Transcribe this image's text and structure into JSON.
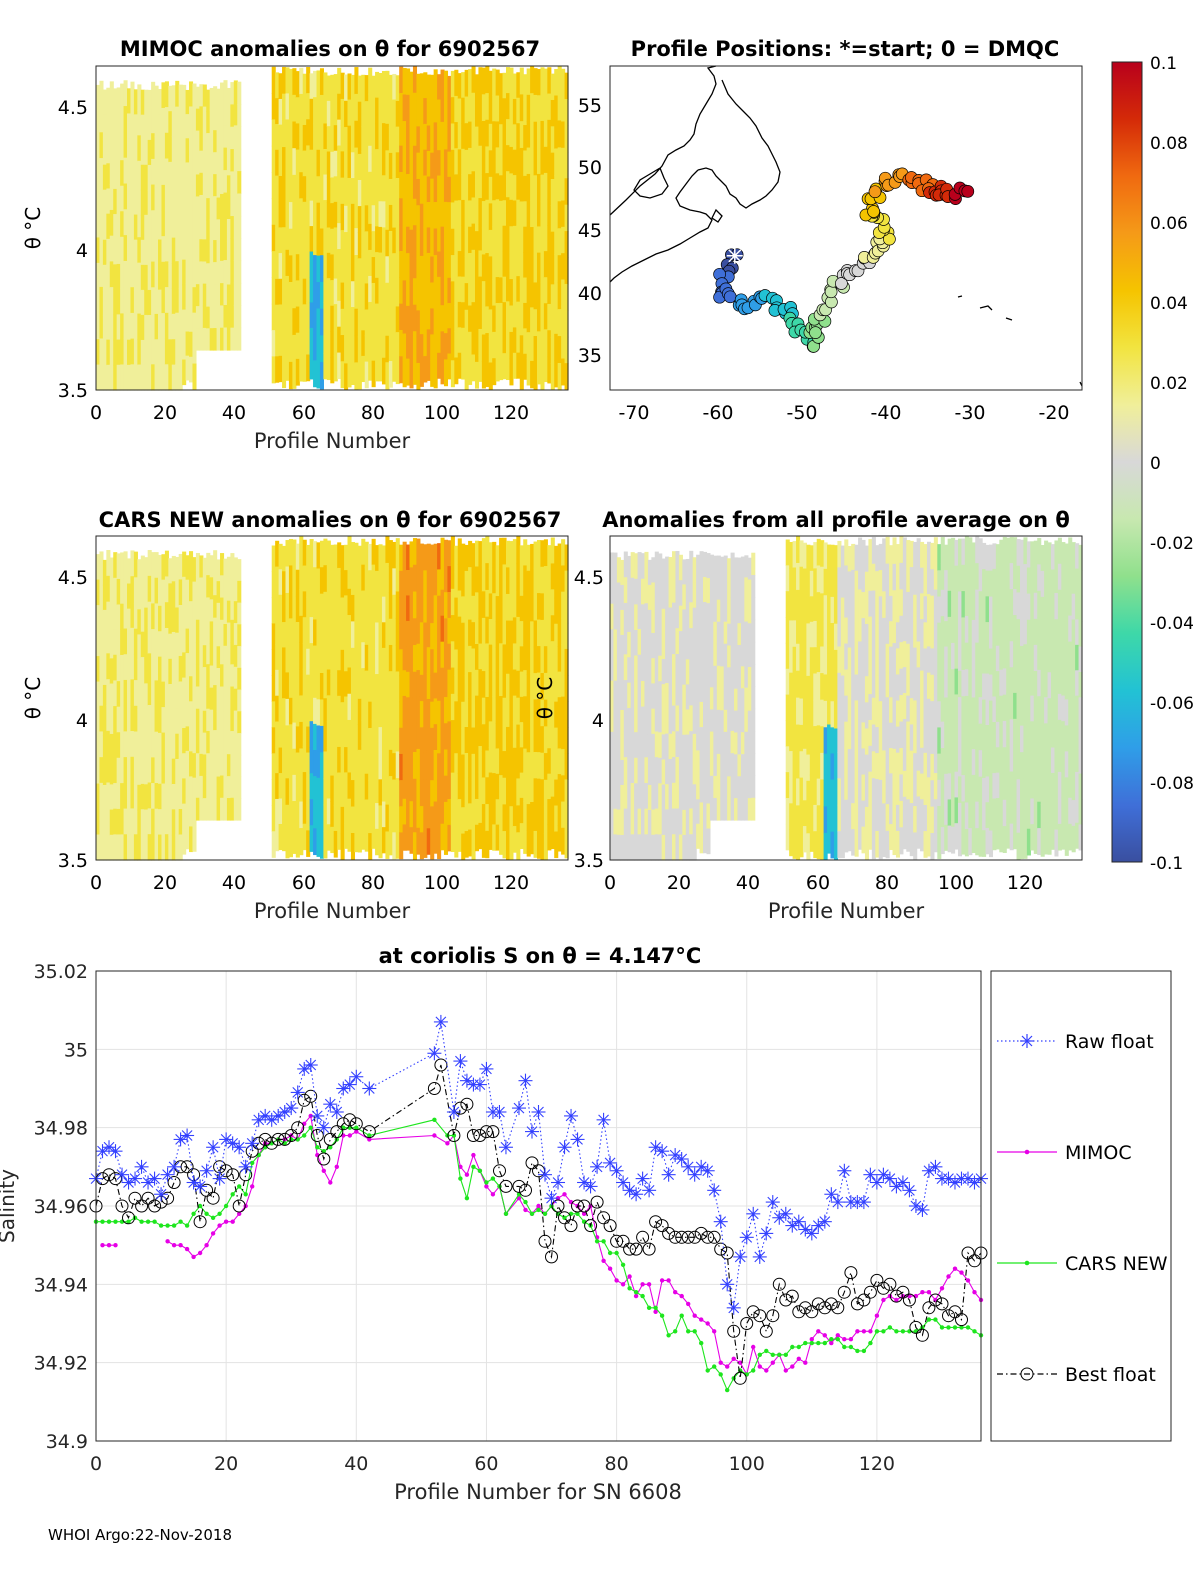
{
  "colors": {
    "raw": "#3340ff",
    "mimoc": "#e600e6",
    "cars": "#1ee61e",
    "best": "#000000",
    "colormap": [
      "#3a4fa0",
      "#3f6fd8",
      "#2f9ee8",
      "#22c2d4",
      "#3ed8a8",
      "#8fe08c",
      "#c8e8b0",
      "#d8d8d8",
      "#f0ef9a",
      "#f2e440",
      "#f5c400",
      "#f59a18",
      "#f06a10",
      "#d42a08",
      "#b8001c"
    ]
  },
  "panels": {
    "mimoc": {
      "title": "MIMOC anomalies on θ  for 6902567",
      "xlabel": "Profile Number",
      "ylabel": "θ °C",
      "xticks": [
        "0",
        "20",
        "40",
        "60",
        "80",
        "100",
        "120"
      ],
      "yticks": [
        "3.5",
        "4",
        "4.5"
      ]
    },
    "positions": {
      "title": "Profile Positions: *=start; 0 = DMQC",
      "xticks": [
        "-70",
        "-60",
        "-50",
        "-40",
        "-30",
        "-20"
      ],
      "yticks": [
        "35",
        "40",
        "45",
        "50",
        "55"
      ]
    },
    "cars": {
      "title": "CARS NEW anomalies on θ for 6902567",
      "xlabel": "Profile Number",
      "ylabel": "θ °C",
      "xticks": [
        "0",
        "20",
        "40",
        "60",
        "80",
        "100",
        "120"
      ],
      "yticks": [
        "3.5",
        "4",
        "4.5"
      ]
    },
    "allavg": {
      "title": "Anomalies from all profile average on θ",
      "xlabel": "Profile Number",
      "ylabel": "θ °C",
      "xticks": [
        "0",
        "20",
        "40",
        "60",
        "80",
        "100",
        "120"
      ],
      "yticks": [
        "3.5",
        "4",
        "4.5"
      ]
    },
    "colorbar": {
      "ticks": [
        "0.1",
        "0.08",
        "0.06",
        "0.04",
        "0.02",
        "0",
        "-0.02",
        "-0.04",
        "-0.06",
        "-0.08",
        "-0.1"
      ]
    }
  },
  "chart_data": {
    "type": "line",
    "title": "at coriolis S on θ = 4.147°C",
    "xlabel": "Profile Number for SN 6608",
    "ylabel": "Salinity",
    "xlim": [
      0,
      136
    ],
    "ylim": [
      34.9,
      35.02
    ],
    "xticks": [
      0,
      20,
      40,
      60,
      80,
      100,
      120
    ],
    "yticks": [
      34.9,
      34.92,
      34.94,
      34.96,
      34.98,
      35,
      35.02
    ],
    "ytick_labels": [
      "34.9",
      "34.92",
      "34.94",
      "34.96",
      "34.98",
      "35",
      "35.02"
    ],
    "grid": true,
    "legend_position": "right-outside",
    "series": [
      {
        "name": "Raw float",
        "style": "dotted-asterisk",
        "x": [
          0,
          1,
          2,
          3,
          4,
          5,
          6,
          7,
          8,
          9,
          10,
          11,
          12,
          13,
          14,
          15,
          16,
          17,
          18,
          19,
          20,
          21,
          22,
          23,
          24,
          25,
          26,
          27,
          28,
          29,
          30,
          31,
          32,
          33,
          34,
          35,
          36,
          37,
          38,
          39,
          40,
          42,
          52,
          53,
          55,
          56,
          57,
          58,
          59,
          60,
          61,
          62,
          63,
          65,
          66,
          67,
          68,
          69,
          70,
          71,
          72,
          73,
          74,
          75,
          76,
          77,
          78,
          79,
          80,
          81,
          82,
          83,
          84,
          85,
          86,
          87,
          88,
          89,
          90,
          91,
          92,
          93,
          94,
          95,
          96,
          97,
          98,
          99,
          100,
          101,
          102,
          103,
          104,
          105,
          106,
          107,
          108,
          109,
          110,
          111,
          112,
          113,
          114,
          115,
          116,
          117,
          118,
          119,
          120,
          121,
          122,
          123,
          124,
          125,
          126,
          127,
          128,
          129,
          130,
          131,
          132,
          133,
          134,
          135,
          136
        ],
        "values": [
          34.967,
          34.974,
          34.975,
          34.974,
          34.968,
          34.966,
          34.967,
          34.97,
          34.966,
          34.967,
          34.963,
          34.968,
          34.97,
          34.977,
          34.978,
          34.966,
          34.965,
          34.969,
          34.975,
          34.967,
          34.977,
          34.976,
          34.975,
          34.97,
          34.976,
          34.982,
          34.983,
          34.982,
          34.983,
          34.984,
          34.985,
          34.989,
          34.995,
          34.996,
          34.983,
          34.98,
          34.986,
          34.984,
          34.99,
          34.991,
          34.993,
          34.99,
          34.999,
          35.007,
          34.984,
          34.997,
          34.992,
          34.991,
          34.991,
          34.995,
          34.984,
          34.984,
          34.975,
          34.985,
          34.992,
          34.979,
          34.984,
          34.968,
          34.962,
          34.966,
          34.975,
          34.983,
          34.977,
          34.966,
          34.965,
          34.97,
          34.982,
          34.971,
          34.969,
          34.966,
          34.964,
          34.963,
          34.967,
          34.964,
          34.975,
          34.974,
          34.968,
          34.973,
          34.972,
          34.97,
          34.968,
          34.97,
          34.969,
          34.964,
          34.956,
          34.94,
          34.934,
          34.947,
          34.952,
          34.958,
          34.947,
          34.953,
          34.961,
          34.957,
          34.958,
          34.955,
          34.956,
          34.954,
          34.953,
          34.955,
          34.956,
          34.963,
          34.961,
          34.969,
          34.961,
          34.961,
          34.961,
          34.968,
          34.966,
          34.968,
          34.967,
          34.965,
          34.966,
          34.964,
          34.96,
          34.959,
          34.969,
          34.97,
          34.967,
          34.967,
          34.966,
          34.967,
          34.967,
          34.966,
          34.967
        ]
      },
      {
        "name": "MIMOC",
        "style": "solid-dot",
        "x": [
          1,
          2,
          3,
          11,
          12,
          13,
          14,
          15,
          16,
          17,
          18,
          19,
          20,
          21,
          22,
          23,
          24,
          25,
          26,
          27,
          28,
          29,
          30,
          31,
          32,
          33,
          34,
          35,
          36,
          37,
          38,
          39,
          40,
          42,
          52,
          54,
          55,
          56,
          57,
          58,
          59,
          60,
          61,
          62,
          63,
          65,
          66,
          67,
          68,
          69,
          70,
          71,
          72,
          73,
          74,
          75,
          76,
          77,
          78,
          79,
          80,
          81,
          82,
          83,
          84,
          85,
          86,
          87,
          88,
          89,
          90,
          91,
          92,
          93,
          94,
          95,
          96,
          97,
          98,
          99,
          100,
          101,
          102,
          103,
          104,
          105,
          106,
          107,
          108,
          109,
          110,
          111,
          112,
          113,
          114,
          115,
          116,
          117,
          118,
          119,
          120,
          121,
          122,
          123,
          124,
          125,
          126,
          127,
          128,
          129,
          130,
          131,
          132,
          133,
          134,
          135,
          136
        ],
        "values": [
          34.95,
          34.95,
          34.95,
          34.951,
          34.95,
          34.95,
          34.949,
          34.947,
          34.948,
          34.95,
          34.953,
          34.955,
          34.956,
          34.956,
          34.958,
          34.96,
          34.965,
          34.973,
          34.976,
          34.976,
          34.977,
          34.977,
          34.978,
          34.977,
          34.981,
          34.983,
          34.973,
          34.969,
          34.966,
          34.97,
          34.978,
          34.978,
          34.979,
          34.977,
          34.978,
          34.976,
          34.978,
          34.97,
          34.968,
          34.973,
          34.969,
          34.965,
          34.963,
          34.965,
          34.958,
          34.962,
          34.959,
          34.958,
          34.96,
          34.958,
          34.96,
          34.962,
          34.963,
          34.961,
          34.96,
          34.958,
          34.96,
          34.952,
          34.946,
          34.944,
          34.941,
          34.94,
          34.942,
          34.937,
          34.94,
          34.94,
          34.933,
          34.941,
          34.941,
          34.938,
          34.937,
          34.935,
          34.932,
          34.931,
          34.93,
          34.928,
          34.92,
          34.919,
          34.921,
          34.92,
          34.917,
          34.924,
          34.919,
          34.918,
          34.92,
          34.922,
          34.918,
          34.919,
          34.921,
          34.92,
          34.926,
          34.928,
          34.927,
          34.925,
          34.927,
          34.926,
          34.926,
          34.928,
          34.928,
          34.928,
          34.932,
          34.936,
          34.937,
          34.936,
          34.937,
          34.937,
          34.937,
          34.938,
          34.938,
          34.936,
          34.939,
          34.942,
          34.944,
          34.943,
          34.941,
          34.938,
          34.936
        ]
      },
      {
        "name": "CARS NEW",
        "style": "solid-dot",
        "x": [
          0,
          1,
          2,
          3,
          4,
          5,
          6,
          7,
          8,
          9,
          10,
          11,
          12,
          13,
          14,
          15,
          16,
          17,
          18,
          19,
          20,
          21,
          22,
          23,
          24,
          25,
          26,
          27,
          28,
          29,
          30,
          31,
          32,
          33,
          34,
          35,
          36,
          37,
          38,
          39,
          40,
          42,
          52,
          54,
          55,
          56,
          57,
          58,
          59,
          60,
          61,
          62,
          63,
          65,
          66,
          67,
          68,
          69,
          70,
          71,
          72,
          73,
          74,
          75,
          76,
          77,
          78,
          79,
          80,
          81,
          82,
          83,
          84,
          85,
          86,
          87,
          88,
          89,
          90,
          91,
          92,
          93,
          94,
          95,
          96,
          97,
          98,
          99,
          100,
          101,
          102,
          103,
          104,
          105,
          106,
          107,
          108,
          109,
          110,
          111,
          112,
          113,
          114,
          115,
          116,
          117,
          118,
          119,
          120,
          121,
          122,
          123,
          124,
          125,
          126,
          127,
          128,
          129,
          130,
          131,
          132,
          133,
          134,
          135,
          136
        ],
        "values": [
          34.956,
          34.956,
          34.956,
          34.956,
          34.956,
          34.956,
          34.957,
          34.956,
          34.956,
          34.956,
          34.955,
          34.955,
          34.955,
          34.956,
          34.955,
          34.958,
          34.96,
          34.958,
          34.957,
          34.958,
          34.96,
          34.963,
          34.965,
          34.963,
          34.971,
          34.973,
          34.975,
          34.976,
          34.977,
          34.976,
          34.977,
          34.977,
          34.978,
          34.98,
          34.975,
          34.974,
          34.975,
          34.977,
          34.98,
          34.98,
          34.98,
          34.978,
          34.982,
          34.978,
          34.978,
          34.967,
          34.962,
          34.97,
          34.969,
          34.966,
          34.967,
          34.965,
          34.958,
          34.963,
          34.961,
          34.958,
          34.959,
          34.958,
          34.96,
          34.958,
          34.957,
          34.958,
          34.958,
          34.956,
          34.955,
          34.951,
          34.951,
          34.948,
          34.948,
          34.945,
          34.939,
          34.938,
          34.937,
          34.934,
          34.934,
          34.932,
          34.927,
          34.928,
          34.932,
          34.928,
          34.928,
          34.925,
          34.918,
          34.919,
          34.917,
          34.913,
          34.916,
          34.918,
          34.917,
          34.918,
          34.922,
          34.923,
          34.922,
          34.922,
          34.922,
          34.924,
          34.924,
          34.925,
          34.925,
          34.925,
          34.925,
          34.926,
          34.926,
          34.924,
          34.924,
          34.923,
          34.923,
          34.925,
          34.928,
          34.928,
          34.929,
          34.928,
          34.928,
          34.928,
          34.928,
          34.929,
          34.931,
          34.931,
          34.929,
          34.929,
          34.929,
          34.929,
          34.929,
          34.928,
          34.927
        ]
      },
      {
        "name": "Best float",
        "style": "dashdot-circle",
        "x": [
          0,
          1,
          2,
          3,
          4,
          5,
          6,
          7,
          8,
          9,
          10,
          11,
          12,
          13,
          14,
          15,
          16,
          17,
          18,
          19,
          20,
          21,
          22,
          23,
          24,
          25,
          26,
          27,
          28,
          29,
          30,
          31,
          32,
          33,
          34,
          35,
          36,
          37,
          38,
          39,
          40,
          42,
          52,
          53,
          55,
          56,
          57,
          58,
          59,
          60,
          61,
          62,
          63,
          65,
          66,
          67,
          68,
          69,
          70,
          71,
          72,
          73,
          74,
          75,
          76,
          77,
          78,
          79,
          80,
          81,
          82,
          83,
          84,
          85,
          86,
          87,
          88,
          89,
          90,
          91,
          92,
          93,
          94,
          95,
          96,
          97,
          98,
          99,
          100,
          101,
          102,
          103,
          104,
          105,
          106,
          107,
          108,
          109,
          110,
          111,
          112,
          113,
          114,
          115,
          116,
          117,
          118,
          119,
          120,
          121,
          122,
          123,
          124,
          125,
          126,
          127,
          128,
          129,
          130,
          131,
          132,
          133,
          134,
          135,
          136
        ],
        "values": [
          34.96,
          34.967,
          34.968,
          34.967,
          34.96,
          34.957,
          34.962,
          34.96,
          34.962,
          34.96,
          34.961,
          34.962,
          34.966,
          34.97,
          34.97,
          34.968,
          34.956,
          34.964,
          34.962,
          34.97,
          34.969,
          34.968,
          34.96,
          34.968,
          34.974,
          34.976,
          34.977,
          34.976,
          34.977,
          34.977,
          34.978,
          34.98,
          34.987,
          34.988,
          34.978,
          34.972,
          34.977,
          34.979,
          34.981,
          34.982,
          34.981,
          34.979,
          34.99,
          34.996,
          34.978,
          34.985,
          34.986,
          34.978,
          34.978,
          34.979,
          34.979,
          34.969,
          34.965,
          34.965,
          34.964,
          34.971,
          34.969,
          34.951,
          34.947,
          34.96,
          34.957,
          34.955,
          34.96,
          34.96,
          34.955,
          34.961,
          34.957,
          34.955,
          34.951,
          34.951,
          34.949,
          34.949,
          34.952,
          34.949,
          34.956,
          34.955,
          34.953,
          34.952,
          34.952,
          34.952,
          34.952,
          34.953,
          34.952,
          34.952,
          34.949,
          34.948,
          34.928,
          34.916,
          34.93,
          34.933,
          34.932,
          34.928,
          34.932,
          34.94,
          34.936,
          34.937,
          34.933,
          34.934,
          34.933,
          34.935,
          34.934,
          34.935,
          34.934,
          34.938,
          34.943,
          34.935,
          34.936,
          34.938,
          34.941,
          34.939,
          34.94,
          34.937,
          34.938,
          34.936,
          34.929,
          34.927,
          34.934,
          34.936,
          34.935,
          34.932,
          34.933,
          34.931,
          34.948,
          34.946,
          34.948
        ]
      }
    ]
  },
  "legend": {
    "raw": "Raw float",
    "mimoc": "MIMOC",
    "cars": "CARS NEW",
    "best": "Best float"
  },
  "footer": "WHOI Argo:22-Nov-2018"
}
